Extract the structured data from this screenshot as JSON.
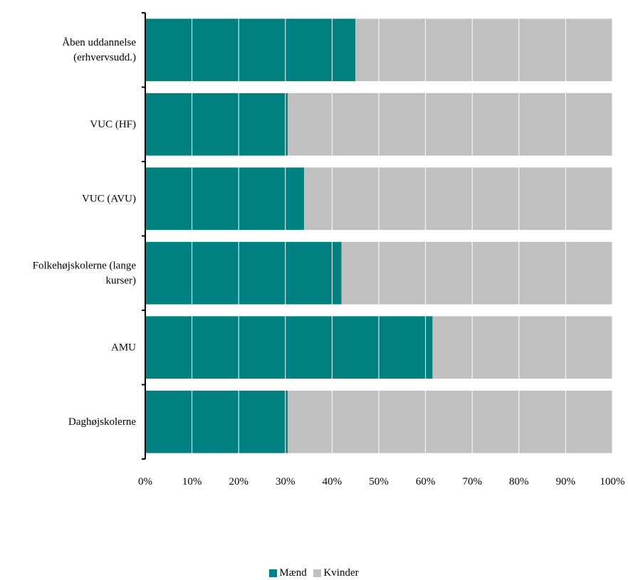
{
  "chart_data": {
    "type": "bar",
    "orientation": "horizontal",
    "stacked": "percent",
    "categories": [
      [
        "Åben uddannelse",
        "(erhvervsudd.)"
      ],
      [
        "VUC (HF)"
      ],
      [
        "VUC (AVU)"
      ],
      [
        "Folkehøjskolerne (lange",
        "kurser)"
      ],
      [
        "AMU"
      ],
      [
        "Daghøjskolerne"
      ]
    ],
    "series": [
      {
        "name": "Mænd",
        "color": "#008080",
        "values": [
          45,
          30.5,
          34,
          42,
          61.5,
          30.5
        ]
      },
      {
        "name": "Kvinder",
        "color": "#C0C0C0",
        "values": [
          55,
          69.5,
          66,
          58,
          38.5,
          69.5
        ]
      }
    ],
    "xlim": [
      0,
      100
    ],
    "x_ticks": [
      "0%",
      "10%",
      "20%",
      "30%",
      "40%",
      "50%",
      "60%",
      "70%",
      "80%",
      "90%",
      "100%"
    ],
    "grid": {
      "vertical": true,
      "horizontal": false,
      "color": "#ffffff"
    },
    "legend": {
      "position": "bottom"
    }
  }
}
